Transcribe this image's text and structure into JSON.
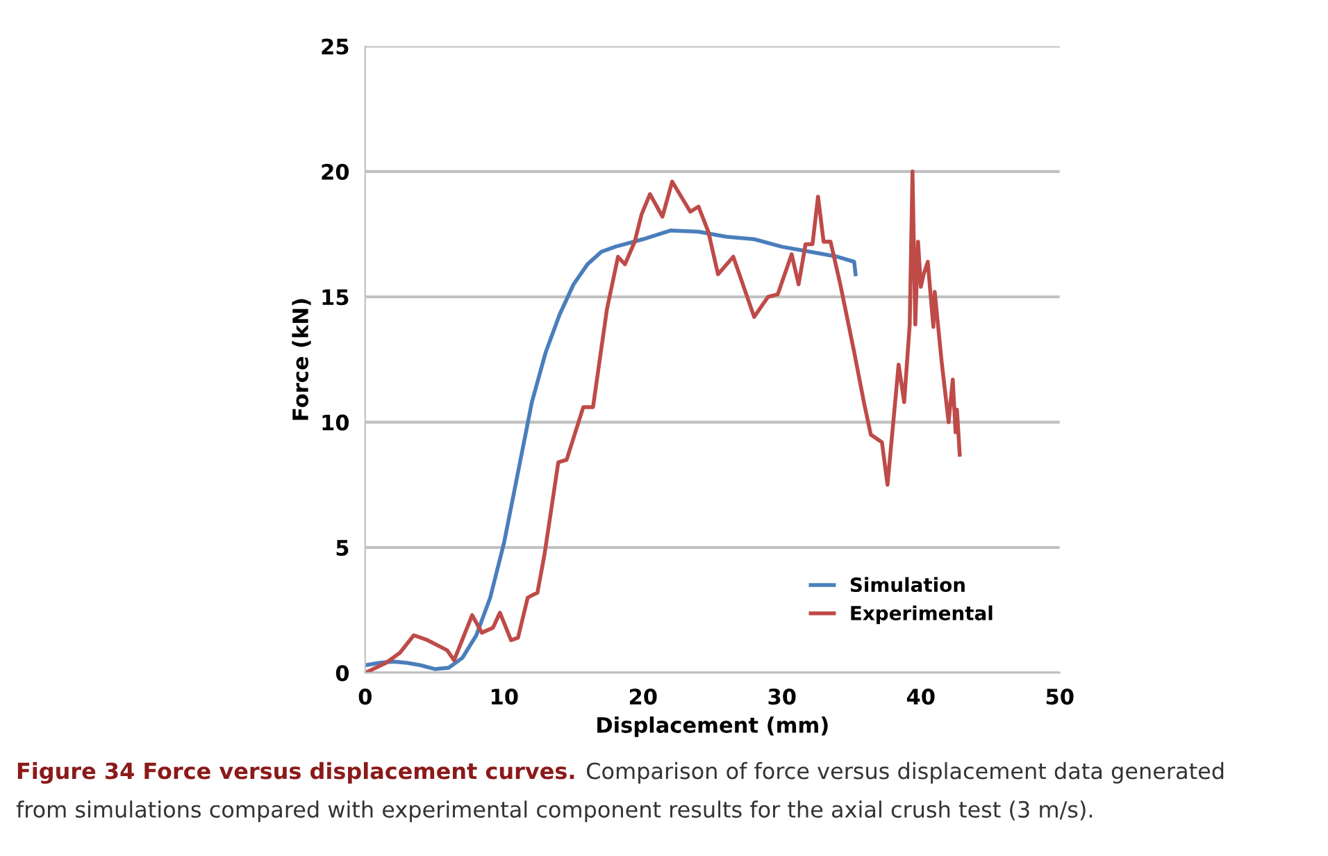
{
  "chart_data": {
    "type": "line",
    "xlabel": "Displacement (mm)",
    "ylabel": "Force (kN)",
    "xlim": [
      0,
      50
    ],
    "xticks": [
      0,
      10,
      20,
      30,
      40,
      50
    ],
    "ylim": [
      0,
      25
    ],
    "yticks": [
      0,
      5,
      10,
      15,
      20,
      25
    ],
    "grid": "y",
    "legend": "bottom right",
    "marker": "none",
    "line_style": "solid",
    "series": [
      {
        "name": "Simulation",
        "color": "#4a7ebb",
        "x": [
          0,
          1,
          2,
          3,
          4,
          5,
          6,
          7,
          8,
          9,
          10,
          11,
          12,
          13,
          14,
          15,
          16,
          17,
          18,
          20,
          22,
          24,
          26,
          28,
          30,
          32,
          34,
          35.2,
          35.3
        ],
        "values": [
          0.3,
          0.4,
          0.45,
          0.4,
          0.3,
          0.15,
          0.2,
          0.6,
          1.5,
          3,
          5.2,
          8,
          10.8,
          12.8,
          14.3,
          15.5,
          16.3,
          16.8,
          17,
          17.3,
          17.65,
          17.6,
          17.4,
          17.3,
          17.0,
          16.8,
          16.6,
          16.4,
          15.9
        ]
      },
      {
        "name": "Experimental",
        "color": "#be4b48",
        "x": [
          0,
          1.5,
          2.5,
          3.5,
          4.5,
          5.9,
          6.4,
          7.7,
          8.4,
          9.2,
          9.7,
          10.5,
          11.0,
          11.7,
          12.4,
          12.9,
          13.2,
          13.9,
          14.5,
          15.7,
          16.4,
          17.4,
          18.2,
          18.7,
          19.4,
          19.9,
          20.5,
          21.4,
          22.1,
          23.4,
          24,
          24.7,
          25.4,
          26.5,
          28,
          29,
          29.7,
          30.7,
          31.2,
          31.7,
          32.2,
          32.6,
          33,
          33.5,
          34.2,
          35.2,
          35.9,
          36.4,
          37.2,
          37.6,
          38.4,
          38.8,
          39.2,
          39.4,
          39.6,
          39.8,
          40,
          40.2,
          40.5,
          40.9,
          41,
          41.5,
          42,
          42.3,
          42.5,
          42.6,
          42.8
        ],
        "values": [
          0,
          0.4,
          0.8,
          1.5,
          1.3,
          0.9,
          0.5,
          2.3,
          1.6,
          1.8,
          2.4,
          1.3,
          1.4,
          3.0,
          3.2,
          4.7,
          5.8,
          8.4,
          8.5,
          10.6,
          10.6,
          14.5,
          16.6,
          16.3,
          17.2,
          18.3,
          19.1,
          18.2,
          19.6,
          18.4,
          18.6,
          17.6,
          15.9,
          16.6,
          14.2,
          15,
          15.1,
          16.7,
          15.5,
          17.1,
          17.1,
          19.0,
          17.2,
          17.2,
          15.5,
          12.8,
          10.8,
          9.5,
          9.2,
          7.5,
          12.3,
          10.8,
          13.9,
          20,
          13.9,
          17.2,
          15.4,
          15.9,
          16.4,
          13.8,
          15.2,
          12.4,
          10,
          11.7,
          9.6,
          10.5,
          8.7
        ]
      }
    ],
    "annotations": [
      "Figure 34 Force versus displacement curves.",
      "Comparison of force versus displacement data generated",
      "from simulations compared with experimental component results for the axial crush test (3 m/s)."
    ]
  }
}
